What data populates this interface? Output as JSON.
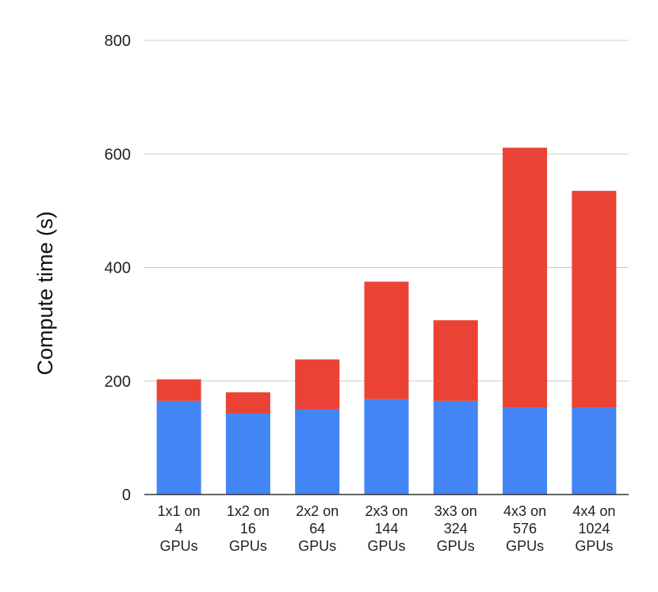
{
  "chart_data": {
    "type": "bar",
    "stacked": true,
    "title": "",
    "xlabel": "",
    "ylabel": "Compute time (s)",
    "ylim": [
      0,
      800
    ],
    "yticks": [
      0,
      200,
      400,
      600,
      800
    ],
    "grid": true,
    "legend": "none",
    "categories": [
      [
        "1x1 on",
        "4",
        "GPUs"
      ],
      [
        "1x2 on",
        "16",
        "GPUs"
      ],
      [
        "2x2 on",
        "64",
        "GPUs"
      ],
      [
        "2x3 on",
        "144",
        "GPUs"
      ],
      [
        "3x3 on",
        "324",
        "GPUs"
      ],
      [
        "4x3 on",
        "576",
        "GPUs"
      ],
      [
        "4x4 on",
        "1024",
        "GPUs"
      ]
    ],
    "series": [
      {
        "name": "blue",
        "color": "#4285f4",
        "values": [
          165,
          143,
          150,
          168,
          165,
          153,
          153
        ]
      },
      {
        "name": "red",
        "color": "#ea4335",
        "values": [
          38,
          37,
          88,
          207,
          142,
          458,
          382
        ]
      }
    ]
  }
}
